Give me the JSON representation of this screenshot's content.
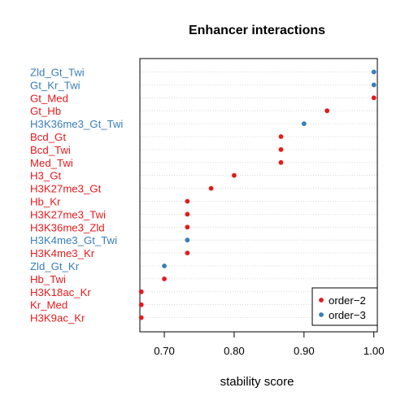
{
  "chart_data": {
    "type": "scatter",
    "title": "Enhancer interactions",
    "xlabel": "stability score",
    "ylabel": "",
    "xlim": [
      0.665,
      1.005
    ],
    "xticks": [
      0.7,
      0.8,
      0.9,
      1.0
    ],
    "xtick_labels": [
      "0.70",
      "0.80",
      "0.90",
      "1.00"
    ],
    "grid": "horizontal dotted",
    "legend_position": "bottom-right",
    "series": [
      {
        "name": "order−2",
        "color": "#e41a1c"
      },
      {
        "name": "order−3",
        "color": "#377eb8"
      }
    ],
    "points": [
      {
        "label": "Zld_Gt_Twi",
        "value": 1.0,
        "order": "order−3"
      },
      {
        "label": "Gt_Kr_Twi",
        "value": 1.0,
        "order": "order−3"
      },
      {
        "label": "Gt_Med",
        "value": 1.0,
        "order": "order−2"
      },
      {
        "label": "Gt_Hb",
        "value": 0.933,
        "order": "order−2"
      },
      {
        "label": "H3K36me3_Gt_Twi",
        "value": 0.9,
        "order": "order−3"
      },
      {
        "label": "Bcd_Gt",
        "value": 0.867,
        "order": "order−2"
      },
      {
        "label": "Bcd_Twi",
        "value": 0.867,
        "order": "order−2"
      },
      {
        "label": "Med_Twi",
        "value": 0.867,
        "order": "order−2"
      },
      {
        "label": "H3_Gt",
        "value": 0.8,
        "order": "order−2"
      },
      {
        "label": "H3K27me3_Gt",
        "value": 0.767,
        "order": "order−2"
      },
      {
        "label": "Hb_Kr",
        "value": 0.733,
        "order": "order−2"
      },
      {
        "label": "H3K27me3_Twi",
        "value": 0.733,
        "order": "order−2"
      },
      {
        "label": "H3K36me3_Zld",
        "value": 0.733,
        "order": "order−2"
      },
      {
        "label": "H3K4me3_Gt_Twi",
        "value": 0.733,
        "order": "order−3"
      },
      {
        "label": "H3K4me3_Kr",
        "value": 0.733,
        "order": "order−2"
      },
      {
        "label": "Zld_Gt_Kr",
        "value": 0.7,
        "order": "order−3"
      },
      {
        "label": "Hb_Twi",
        "value": 0.7,
        "order": "order−2"
      },
      {
        "label": "H3K18ac_Kr",
        "value": 0.667,
        "order": "order−2"
      },
      {
        "label": "Kr_Med",
        "value": 0.667,
        "order": "order−2"
      },
      {
        "label": "H3K9ac_Kr",
        "value": 0.667,
        "order": "order−2"
      }
    ]
  }
}
